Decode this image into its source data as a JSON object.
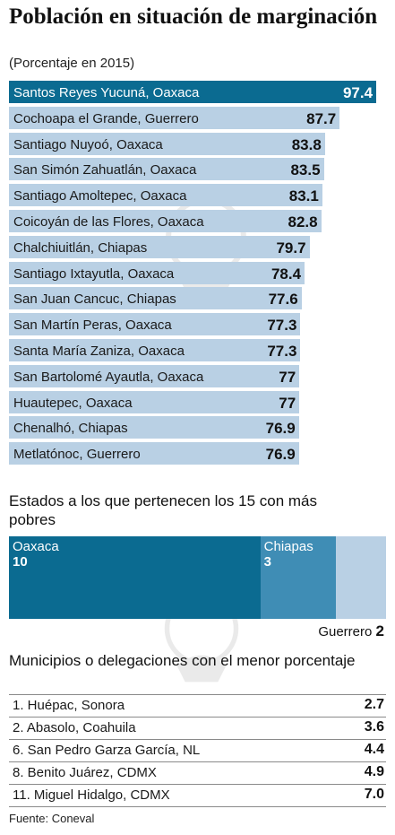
{
  "chart_data": [
    {
      "type": "bar",
      "orientation": "horizontal",
      "title": "Población en situación de marginación",
      "subtitle": "(Porcentaje en 2015)",
      "categories": [
        "Santos Reyes Yucuná, Oaxaca",
        "Cochoapa el Grande, Guerrero",
        "Santiago Nuyoó, Oaxaca",
        "San Simón Zahuatlán, Oaxaca",
        "Santiago Amoltepec, Oaxaca",
        "Coicoyán de las Flores, Oaxaca",
        "Chalchiuitlán, Chiapas",
        "Santiago Ixtayutla, Oaxaca",
        "San Juan Cancuc, Chiapas",
        "San Martín Peras, Oaxaca",
        "Santa María Zaniza, Oaxaca",
        "San Bartolomé Ayautla, Oaxaca",
        "Huautepec, Oaxaca",
        "Chenalhó, Chiapas",
        "Metlatónoc, Guerrero"
      ],
      "values": [
        97.4,
        87.7,
        83.8,
        83.5,
        83.1,
        82.8,
        79.7,
        78.4,
        77.6,
        77.3,
        77.3,
        77,
        77,
        76.9,
        76.9
      ],
      "value_labels": [
        "97.4",
        "87.7",
        "83.8",
        "83.5",
        "83.1",
        "82.8",
        "79.7",
        "78.4",
        "77.6",
        "77.3",
        "77.3",
        "77",
        "77",
        "76.9",
        "76.9"
      ],
      "xlim": [
        0,
        100
      ],
      "highlight_color": "#0b6b91",
      "bar_color": "#b9d0e4"
    },
    {
      "type": "bar",
      "orientation": "stacked-horizontal",
      "title": "Estados a los que pertenecen los 15 con más pobres",
      "categories": [
        "Oaxaca",
        "Chiapas",
        "Guerrero"
      ],
      "values": [
        10,
        3,
        2
      ],
      "colors": [
        "#0b6b91",
        "#3f8db5",
        "#b9d0e4"
      ]
    },
    {
      "type": "table",
      "title": "Municipios o delegaciones con el menor porcentaje",
      "rows": [
        {
          "name": "1. Huépac, Sonora",
          "value": "2.7"
        },
        {
          "name": "2. Abasolo, Coahuila",
          "value": "3.6"
        },
        {
          "name": "6. San Pedro Garza García, NL",
          "value": "4.4"
        },
        {
          "name": "8. Benito Juárez, CDMX",
          "value": "4.9"
        },
        {
          "name": "11. Miguel Hidalgo, CDMX",
          "value": "7.0"
        }
      ]
    }
  ],
  "source": "Fuente: Coneval"
}
